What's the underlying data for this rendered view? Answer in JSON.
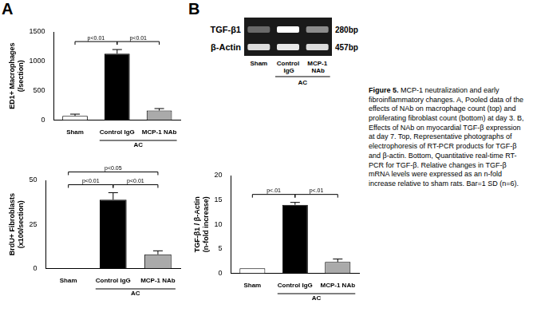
{
  "panel_labels": [
    "A",
    "B"
  ],
  "chart_data": [
    {
      "type": "bar",
      "ylabel": [
        "ED1+ Macrophages",
        "(/section)"
      ],
      "categories": [
        "Sham",
        "Control IgG",
        "MCP-1 NAb"
      ],
      "values": [
        70,
        1130,
        160
      ],
      "errors": [
        30,
        70,
        35
      ],
      "colors": [
        "#ffffff",
        "#000000",
        "#aaaaaa"
      ],
      "ylim": [
        0,
        1500
      ],
      "yticks": [
        0,
        500,
        1000,
        1500
      ],
      "grid": false,
      "group": {
        "label": "AC",
        "categories": [
          "Control IgG",
          "MCP-1 NAb"
        ]
      },
      "comparisons": [
        {
          "from": "Sham",
          "to": "Control IgG",
          "label": "p<0.01"
        },
        {
          "from": "Control IgG",
          "to": "MCP-1 NAb",
          "label": "p<0.01"
        }
      ]
    },
    {
      "type": "bar",
      "ylabel": [
        "BrdU+ Fibroblasts",
        "(x100/section)"
      ],
      "categories": [
        "Sham",
        "Control IgG",
        "MCP-1 NAb"
      ],
      "values": [
        0,
        39,
        8
      ],
      "errors": [
        0,
        4,
        2
      ],
      "colors": [
        "#ffffff",
        "#000000",
        "#aaaaaa"
      ],
      "ylim": [
        0,
        50
      ],
      "yticks": [
        0,
        25,
        50
      ],
      "grid": false,
      "group": {
        "label": "AC",
        "categories": [
          "Control IgG",
          "MCP-1 NAb"
        ]
      },
      "comparisons": [
        {
          "from": "Sham",
          "to": "Control IgG",
          "label": "p<0.01"
        },
        {
          "from": "Control IgG",
          "to": "MCP-1 NAb",
          "label": "p<0.01"
        },
        {
          "from": "Sham",
          "to": "MCP-1 NAb",
          "label": "p<0.05"
        }
      ]
    },
    {
      "type": "bar",
      "ylabel": [
        "TGF-β1 / β-Actin",
        "(n-fold increase)"
      ],
      "categories": [
        "Sham",
        "Control IgG",
        "MCP-1 NAb"
      ],
      "values": [
        1,
        14,
        2.3
      ],
      "errors": [
        0,
        0.5,
        0.6
      ],
      "colors": [
        "#ffffff",
        "#000000",
        "#aaaaaa"
      ],
      "ylim": [
        0,
        20
      ],
      "yticks": [
        0,
        5,
        10,
        15,
        20
      ],
      "grid": false,
      "group": {
        "label": "AC",
        "categories": [
          "Control IgG",
          "MCP-1 NAb"
        ]
      },
      "comparisons": [
        {
          "from": "Sham",
          "to": "Control IgG",
          "label": "p<.01"
        },
        {
          "from": "Control IgG",
          "to": "MCP-1 NAb",
          "label": "p<.01"
        }
      ]
    }
  ],
  "gel": {
    "rows": [
      {
        "label": "TGF-β1",
        "size": "280bp",
        "intensities": [
          0.35,
          1,
          0.5
        ]
      },
      {
        "label": "β-Actin",
        "size": "457bp",
        "intensities": [
          0.85,
          0.9,
          0.85
        ]
      }
    ],
    "lanes": [
      "Sham",
      "Control IgG",
      "MCP-1 NAb"
    ],
    "group": {
      "label": "AC",
      "lanes": [
        "Control IgG",
        "MCP-1 NAb"
      ]
    }
  },
  "caption": {
    "title": "Figure 5.",
    "text": "MCP-1 neutralization and early fibroinflammatory changes. A, Pooled data of the effects of NAb on macrophage count (top) and proliferating fibroblast count (bottom) at day 3. B, Effects of NAb on myocardial TGF-β expression at day 7. Top, Representative photographs of electrophoresis of RT-PCR products for TGF-β and β-actin. Bottom, Quantitative real-time RT-PCR for TGF-β. Relative changes in TGF-β mRNA levels were expressed as an n-fold increase relative to sham rats. Bar=1 SD (n=6)."
  }
}
